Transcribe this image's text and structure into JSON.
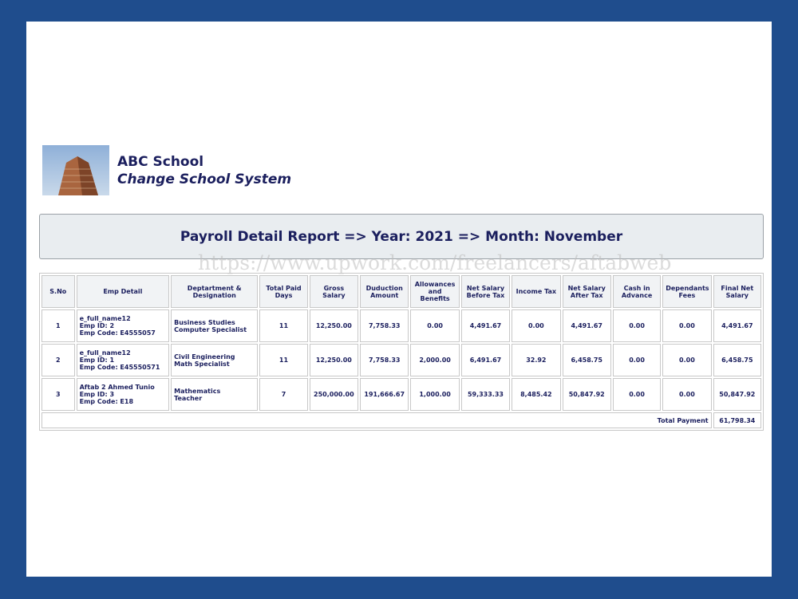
{
  "header": {
    "school_name": "ABC School",
    "system_name": "Change School System"
  },
  "report_title": "Payroll Detail Report => Year: 2021 => Month: November",
  "watermark": "https://www.upwork.com/freelancers/aftabweb",
  "table": {
    "columns": [
      "S.No",
      "Emp Detail",
      "Deptartment & Designation",
      "Total Paid Days",
      "Gross Salary",
      "Duduction Amount",
      "Allowances and Benefits",
      "Net Salary Before Tax",
      "Income Tax",
      "Net Salary After Tax",
      "Cash in Advance",
      "Dependants Fees",
      "Final Net Salary"
    ],
    "rows": [
      [
        "1",
        [
          "e_full_name12",
          "Emp ID: 2",
          "Emp Code: E4555057"
        ],
        [
          "Business Studies",
          "Computer Specialist"
        ],
        "11",
        "12,250.00",
        "7,758.33",
        "0.00",
        "4,491.67",
        "0.00",
        "4,491.67",
        "0.00",
        "0.00",
        "4,491.67"
      ],
      [
        "2",
        [
          "e_full_name12",
          "Emp ID: 1",
          "Emp Code: E45550571"
        ],
        [
          "Civil Engineering",
          "Math Specialist"
        ],
        "11",
        "12,250.00",
        "7,758.33",
        "2,000.00",
        "6,491.67",
        "32.92",
        "6,458.75",
        "0.00",
        "0.00",
        "6,458.75"
      ],
      [
        "3",
        [
          "Aftab 2 Ahmed Tunio",
          "Emp ID: 3",
          "Emp Code: E18"
        ],
        [
          "Mathematics",
          "Teacher"
        ],
        "7",
        "250,000.00",
        "191,666.67",
        "1,000.00",
        "59,333.33",
        "8,485.42",
        "50,847.92",
        "0.00",
        "0.00",
        "50,847.92"
      ]
    ],
    "total_label": "Total Payment",
    "total_value": "61,798.34"
  }
}
